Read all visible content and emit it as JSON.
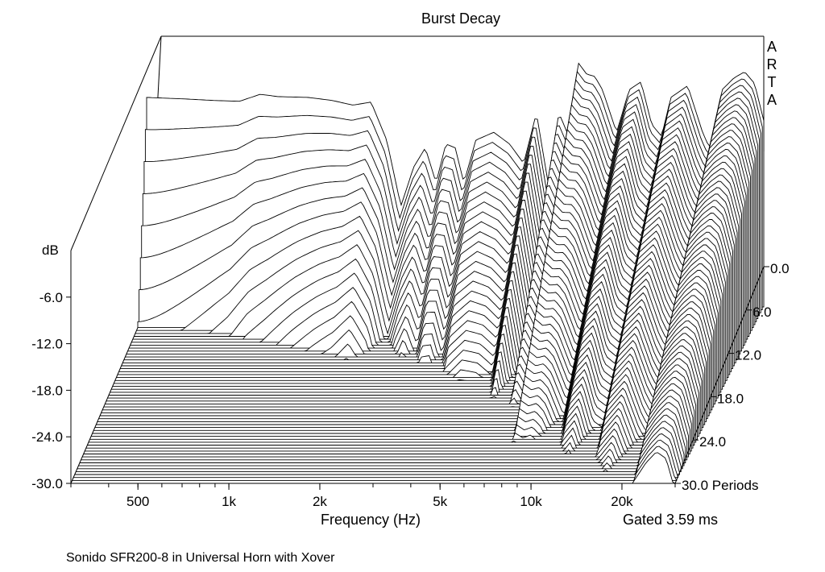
{
  "chart_data": {
    "type": "waterfall",
    "title": "Burst Decay",
    "watermark": "ARTA",
    "y_unit_label": "dB",
    "x_axis_label": "Frequency (Hz)",
    "x_scale": "log",
    "x_range": [
      300,
      30000
    ],
    "x_tick_labels": [
      "500",
      "1k",
      "2k",
      "5k",
      "10k",
      "20k"
    ],
    "x_tick_values": [
      500,
      1000,
      2000,
      5000,
      10000,
      20000
    ],
    "y_range": [
      -30,
      0
    ],
    "y_tick_labels": [
      "-6.0",
      "-12.0",
      "-18.0",
      "-24.0",
      "-30.0"
    ],
    "y_tick_values": [
      -6,
      -12,
      -18,
      -24,
      -30
    ],
    "z_axis_label": "Periods",
    "z_range": [
      0,
      30
    ],
    "z_tick_labels": [
      "0.0",
      "6.0",
      "12.0",
      "18.0",
      "24.0",
      "30.0 Periods"
    ],
    "z_tick_values": [
      0,
      6,
      12,
      18,
      24,
      30
    ],
    "slices": 60,
    "gating_note": "Gated 3.59 ms",
    "caption": "Sonido SFR200-8  in Universal Horn with Xover",
    "front_response_db": [
      [
        300,
        -3.0
      ],
      [
        400,
        -3.2
      ],
      [
        500,
        -3.4
      ],
      [
        600,
        -3.5
      ],
      [
        700,
        -2.6
      ],
      [
        800,
        -2.9
      ],
      [
        1000,
        -3.0
      ],
      [
        1200,
        -3.4
      ],
      [
        1400,
        -4.0
      ],
      [
        1600,
        -3.6
      ],
      [
        1800,
        -8.5
      ],
      [
        2000,
        -17.0
      ],
      [
        2200,
        -12.0
      ],
      [
        2400,
        -9.5
      ],
      [
        2600,
        -14.0
      ],
      [
        2800,
        -9.0
      ],
      [
        3000,
        -9.5
      ],
      [
        3200,
        -14.0
      ],
      [
        3500,
        -8.5
      ],
      [
        4000,
        -7.5
      ],
      [
        4500,
        -9.0
      ],
      [
        5000,
        -11.5
      ],
      [
        5500,
        -5.0
      ],
      [
        6000,
        -14.0
      ],
      [
        6500,
        -5.0
      ],
      [
        7000,
        -8.0
      ],
      [
        7500,
        1.5
      ],
      [
        8000,
        0.0
      ],
      [
        8500,
        -0.3
      ],
      [
        9000,
        -2.0
      ],
      [
        10000,
        -7.5
      ],
      [
        11000,
        -2.0
      ],
      [
        12000,
        -1.0
      ],
      [
        13000,
        -6.5
      ],
      [
        14000,
        -8.0
      ],
      [
        15000,
        -3.0
      ],
      [
        17000,
        -1.5
      ],
      [
        19000,
        -7.5
      ],
      [
        20000,
        -9.5
      ],
      [
        22000,
        -2.0
      ],
      [
        24000,
        -0.5
      ],
      [
        26000,
        0.3
      ],
      [
        28000,
        -1.2
      ],
      [
        30000,
        -6.0
      ]
    ]
  }
}
